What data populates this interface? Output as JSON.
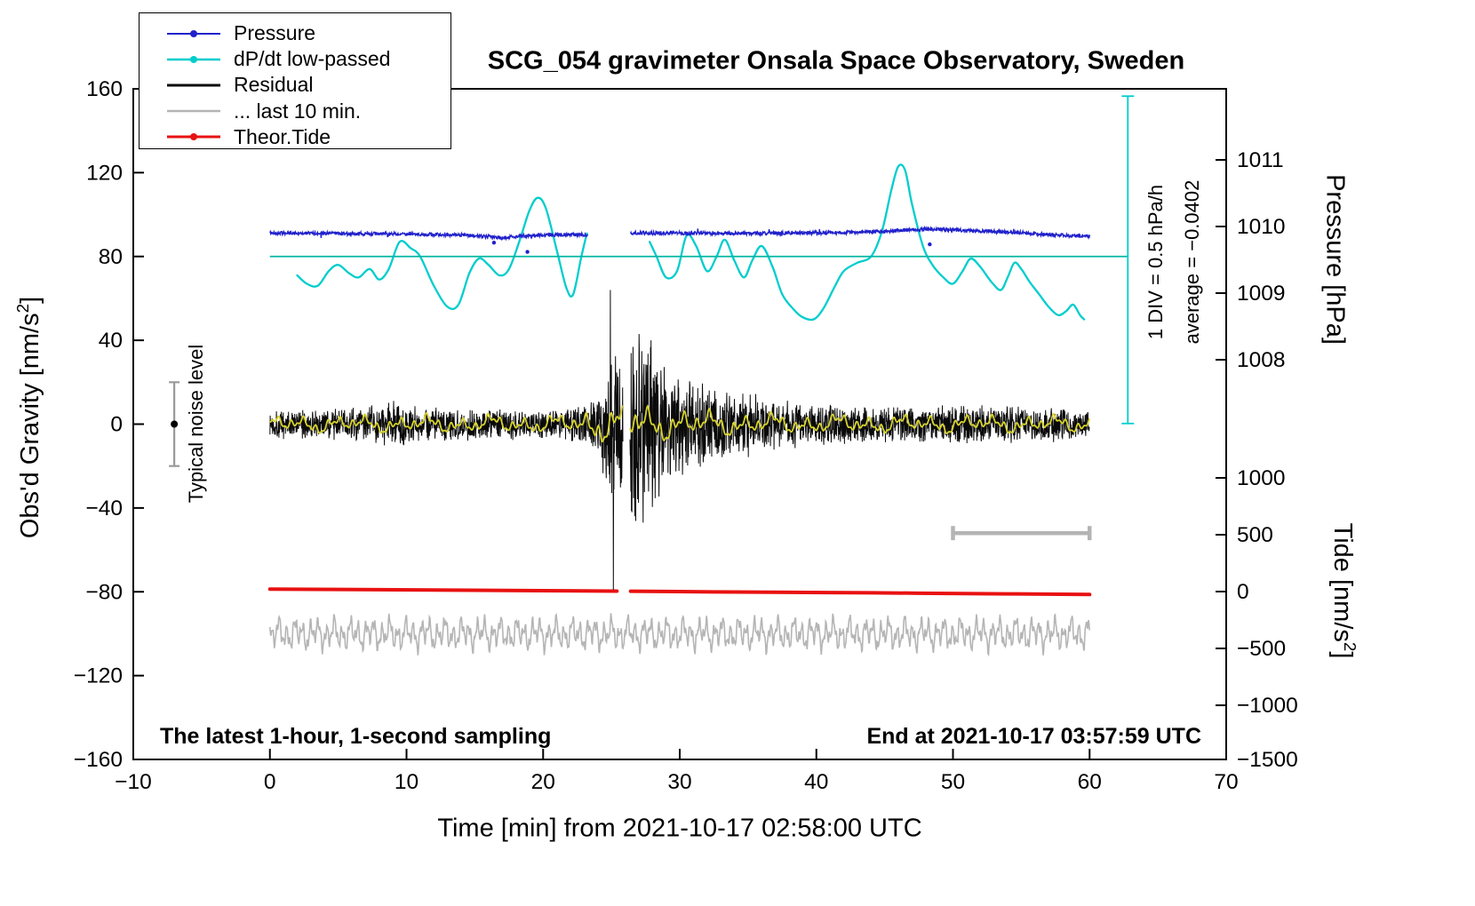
{
  "title": "SCG_054 gravimeter Onsala Space Observatory, Sweden",
  "notes": {
    "sampling_note": "The latest 1-hour, 1-second sampling",
    "end_note": "End at 2021-10-17 03:57:59 UTC"
  },
  "annotations": {
    "noise_label": "Typical noise level",
    "div_label": "1 DIV = 0.5 hPa/h",
    "average_label": "average = −0.0402"
  },
  "legend": {
    "items": [
      {
        "label": "Pressure",
        "color": "#2121cc",
        "dot": true,
        "lw": 2
      },
      {
        "label": "dP/dt low-passed",
        "color": "#00cdcd",
        "dot": true,
        "lw": 2.4
      },
      {
        "label": "Residual",
        "color": "#0a0a0a",
        "dot": false,
        "lw": 3
      },
      {
        "label": "... last 10 min.",
        "color": "#b5b5b5",
        "dot": false,
        "lw": 2.6
      },
      {
        "label": "Theor.Tide",
        "color": "#e81111",
        "dot": true,
        "lw": 3
      }
    ]
  },
  "axes": {
    "x": {
      "label": "Time [min] from 2021-10-17 02:58:00 UTC",
      "min": -10,
      "max": 70,
      "ticks": [
        -10,
        0,
        10,
        20,
        30,
        40,
        50,
        60,
        70
      ],
      "tick_labels": [
        "−10",
        "0",
        "10",
        "20",
        "30",
        "40",
        "50",
        "60",
        "70"
      ]
    },
    "y_left": {
      "label_prefix": "Obs'd Gravity [nm/s",
      "label_sup": "2",
      "label_suffix": "]",
      "min": -160,
      "max": 160,
      "ticks": [
        160,
        120,
        80,
        40,
        0,
        -40,
        -80,
        -120,
        -160
      ],
      "tick_labels": [
        "160",
        "120",
        "80",
        "40",
        "0",
        "−40",
        "−80",
        "−120",
        "−160"
      ]
    },
    "y_right_pressure": {
      "label": "Pressure [hPa]",
      "ticks": [
        1011,
        1010,
        1009,
        1008
      ],
      "tick_labels": [
        "1011",
        "1010",
        "1009",
        "1008"
      ],
      "gravity_at_1010": 94.3,
      "gravity_per_hpa": 31.79
    },
    "y_right_tide": {
      "label_prefix": "Tide [nm/s",
      "label_sup": "2",
      "label_suffix": "]",
      "ticks": [
        1000,
        500,
        0,
        -500,
        -1000,
        -1500
      ],
      "tick_labels": [
        "1000",
        "500",
        "0",
        "−500",
        "−1000",
        "−1500"
      ],
      "gravity_at_zero": -79.9,
      "gravity_per_unit": 0.05426
    }
  },
  "chart_data": {
    "type": "line",
    "x_range": [
      -10,
      70
    ],
    "y_range": [
      -160,
      160
    ],
    "grid": false,
    "legend_position": "top-left",
    "series": [
      {
        "id": "last10",
        "name": "... last 10 min.",
        "color": "#b5b5b5",
        "style": "smoothnoise",
        "width": 1.6,
        "x_start": 0,
        "x_end": 60,
        "step": 0.04,
        "base": -100,
        "amp": [
          [
            0,
            6
          ],
          [
            60,
            6
          ]
        ],
        "freqs": [
          [
            0.58,
            1
          ],
          [
            0.25,
            0.6
          ],
          [
            1.35,
            0.6
          ],
          [
            0.13,
            0.3
          ]
        ],
        "phases": [
          0.7,
          2.4,
          4.9,
          1.9
        ],
        "gaps": []
      },
      {
        "id": "tide",
        "name": "Theor.Tide",
        "color": "#e81111",
        "style": "smooth",
        "width": 4,
        "segments": [
          [
            [
              0,
              -78.75
            ],
            [
              8,
              -79.0
            ],
            [
              16,
              -79.3
            ],
            [
              25.4,
              -79.7
            ]
          ],
          [
            [
              26.4,
              -79.75
            ],
            [
              34,
              -80.1
            ],
            [
              44,
              -80.5
            ],
            [
              54,
              -81.0
            ],
            [
              60,
              -81.3
            ]
          ]
        ]
      },
      {
        "id": "residual",
        "name": "Residual",
        "color": "#0a0a0a",
        "style": "noise",
        "width": 1,
        "x_start": 0,
        "x_end": 60,
        "step": 0.02,
        "seed": 1337,
        "gaps": [
          [
            25.85,
            26.35
          ]
        ],
        "envelope": [
          [
            0,
            6.5
          ],
          [
            7,
            7
          ],
          [
            9,
            10.5
          ],
          [
            11,
            7
          ],
          [
            20,
            6.5
          ],
          [
            23,
            8
          ],
          [
            24,
            14
          ],
          [
            24.6,
            27
          ],
          [
            25.1,
            34
          ],
          [
            25.8,
            28
          ],
          [
            26.4,
            40
          ],
          [
            27,
            44
          ],
          [
            28,
            36
          ],
          [
            29,
            28
          ],
          [
            30,
            24
          ],
          [
            32,
            19
          ],
          [
            34,
            15
          ],
          [
            36,
            12
          ],
          [
            38,
            10
          ],
          [
            40,
            9
          ],
          [
            44,
            8.5
          ],
          [
            48,
            7.5
          ],
          [
            52,
            8.5
          ],
          [
            56,
            7.5
          ],
          [
            60,
            7
          ]
        ],
        "spikes": [
          [
            24.92,
            64
          ],
          [
            25.13,
            -79
          ],
          [
            26.7,
            -44
          ],
          [
            27.02,
            43
          ],
          [
            27.32,
            -47
          ],
          [
            27.9,
            40
          ]
        ]
      },
      {
        "id": "residual_lp",
        "name": "Residual low-passed",
        "color": "#d6d32b",
        "style": "smoothnoise",
        "width": 1.8,
        "x_start": 0,
        "x_end": 60,
        "step": 0.05,
        "base": 0,
        "amp": [
          [
            0,
            3
          ],
          [
            22,
            3.2
          ],
          [
            24,
            6
          ],
          [
            26,
            7
          ],
          [
            29,
            5.5
          ],
          [
            33,
            4.2
          ],
          [
            38,
            3.4
          ],
          [
            60,
            3
          ]
        ],
        "freqs": [
          [
            2.3,
            1
          ],
          [
            0.9,
            0.8
          ],
          [
            0.45,
            0.5
          ],
          [
            5.1,
            0.7
          ]
        ],
        "phases": [
          1.2,
          3.3,
          5.0,
          0.4
        ],
        "gaps": [
          [
            25.85,
            26.35
          ]
        ]
      },
      {
        "id": "dpdt",
        "name": "dP/dt low-passed",
        "color": "#00cdcd",
        "style": "smooth",
        "width": 2.3,
        "segments": [
          [
            [
              2,
              71
            ],
            [
              2.7,
              67
            ],
            [
              3.5,
              66
            ],
            [
              4.3,
              73
            ],
            [
              5,
              76
            ],
            [
              5.8,
              72
            ],
            [
              6.5,
              70
            ],
            [
              7.3,
              74
            ],
            [
              8,
              69
            ],
            [
              8.7,
              74
            ],
            [
              9.5,
              87
            ],
            [
              10.3,
              84
            ],
            [
              11,
              80
            ],
            [
              12,
              66
            ],
            [
              13,
              56
            ],
            [
              13.8,
              57
            ],
            [
              14.6,
              72
            ],
            [
              15.3,
              79
            ],
            [
              16,
              76
            ],
            [
              16.8,
              71
            ],
            [
              17.5,
              74
            ],
            [
              18.3,
              88
            ],
            [
              19,
              102
            ],
            [
              19.6,
              108
            ],
            [
              20.2,
              103
            ],
            [
              21,
              83
            ],
            [
              21.7,
              65
            ],
            [
              22.2,
              62
            ],
            [
              22.8,
              80
            ],
            [
              23.2,
              91
            ]
          ],
          [
            [
              27.8,
              87
            ],
            [
              28.3,
              80
            ],
            [
              29,
              70
            ],
            [
              29.8,
              73
            ],
            [
              30.5,
              90
            ],
            [
              31.2,
              85
            ],
            [
              32,
              73
            ],
            [
              32.7,
              80
            ],
            [
              33.3,
              88
            ],
            [
              34,
              78
            ],
            [
              34.7,
              70
            ],
            [
              35.3,
              78
            ],
            [
              36,
              85
            ],
            [
              36.8,
              75
            ],
            [
              37.5,
              62
            ],
            [
              38.3,
              55
            ],
            [
              39,
              51
            ],
            [
              39.8,
              50
            ],
            [
              40.5,
              55
            ],
            [
              41.3,
              65
            ],
            [
              42,
              73
            ],
            [
              43,
              77
            ],
            [
              44,
              80
            ],
            [
              44.8,
              92
            ],
            [
              45.5,
              112
            ],
            [
              46,
              123
            ],
            [
              46.5,
              121
            ],
            [
              47,
              105
            ],
            [
              47.8,
              85
            ],
            [
              48.5,
              76
            ],
            [
              49.3,
              70
            ],
            [
              50,
              67
            ],
            [
              50.7,
              73
            ],
            [
              51.3,
              79
            ],
            [
              52,
              75
            ],
            [
              52.8,
              68
            ],
            [
              53.5,
              64
            ],
            [
              54,
              70
            ],
            [
              54.5,
              77
            ],
            [
              55,
              74
            ],
            [
              55.6,
              68
            ],
            [
              56.3,
              62
            ],
            [
              57,
              56
            ],
            [
              57.7,
              52
            ],
            [
              58.3,
              54
            ],
            [
              58.8,
              57
            ],
            [
              59.3,
              52
            ],
            [
              59.6,
              50
            ]
          ]
        ]
      },
      {
        "id": "pressure",
        "name": "Pressure",
        "color": "#2121cc",
        "style": "noisy-line",
        "width": 1.4,
        "x_start": 0,
        "x_end": 60,
        "step": 0.03,
        "seed": 42,
        "noise": 0.85,
        "gaps": [
          [
            23.3,
            26.4
          ]
        ],
        "base": [
          [
            0,
            91.2
          ],
          [
            4,
            91.0
          ],
          [
            8,
            90.8
          ],
          [
            12,
            90.5
          ],
          [
            14,
            90.2
          ],
          [
            16,
            89.4
          ],
          [
            17,
            88.8
          ],
          [
            18,
            89.6
          ],
          [
            20,
            90.2
          ],
          [
            22,
            90.5
          ],
          [
            23.3,
            90.3
          ],
          [
            26.4,
            91.2
          ],
          [
            30,
            91.1
          ],
          [
            34,
            91.0
          ],
          [
            38,
            91.2
          ],
          [
            42,
            91.4
          ],
          [
            45,
            92.0
          ],
          [
            47,
            92.7
          ],
          [
            49,
            93.0
          ],
          [
            51,
            92.4
          ],
          [
            53,
            91.8
          ],
          [
            55,
            91.3
          ],
          [
            57,
            90.4
          ],
          [
            59,
            89.8
          ],
          [
            60,
            89.6
          ]
        ],
        "outliers": [
          [
            16.4,
            86.6
          ],
          [
            18.85,
            82.2
          ],
          [
            48.3,
            85.8
          ]
        ]
      }
    ],
    "annotations_geometry": {
      "ref_line": {
        "y": 80,
        "x_start": 0,
        "x_end": 62.8,
        "color": "#00b7a4"
      },
      "div_bar": {
        "x": 62.8,
        "y_top": 156.5,
        "y_bottom": 0.3,
        "color": "#00cdcd"
      },
      "noise_bar": {
        "x": -7,
        "y_min": -20,
        "y_max": 20,
        "dot_y": 0,
        "color": "#9a9a9a"
      },
      "scale_bar": {
        "y": -52,
        "x_start": 50,
        "x_end": 60,
        "color": "#b4b4b4"
      }
    }
  }
}
